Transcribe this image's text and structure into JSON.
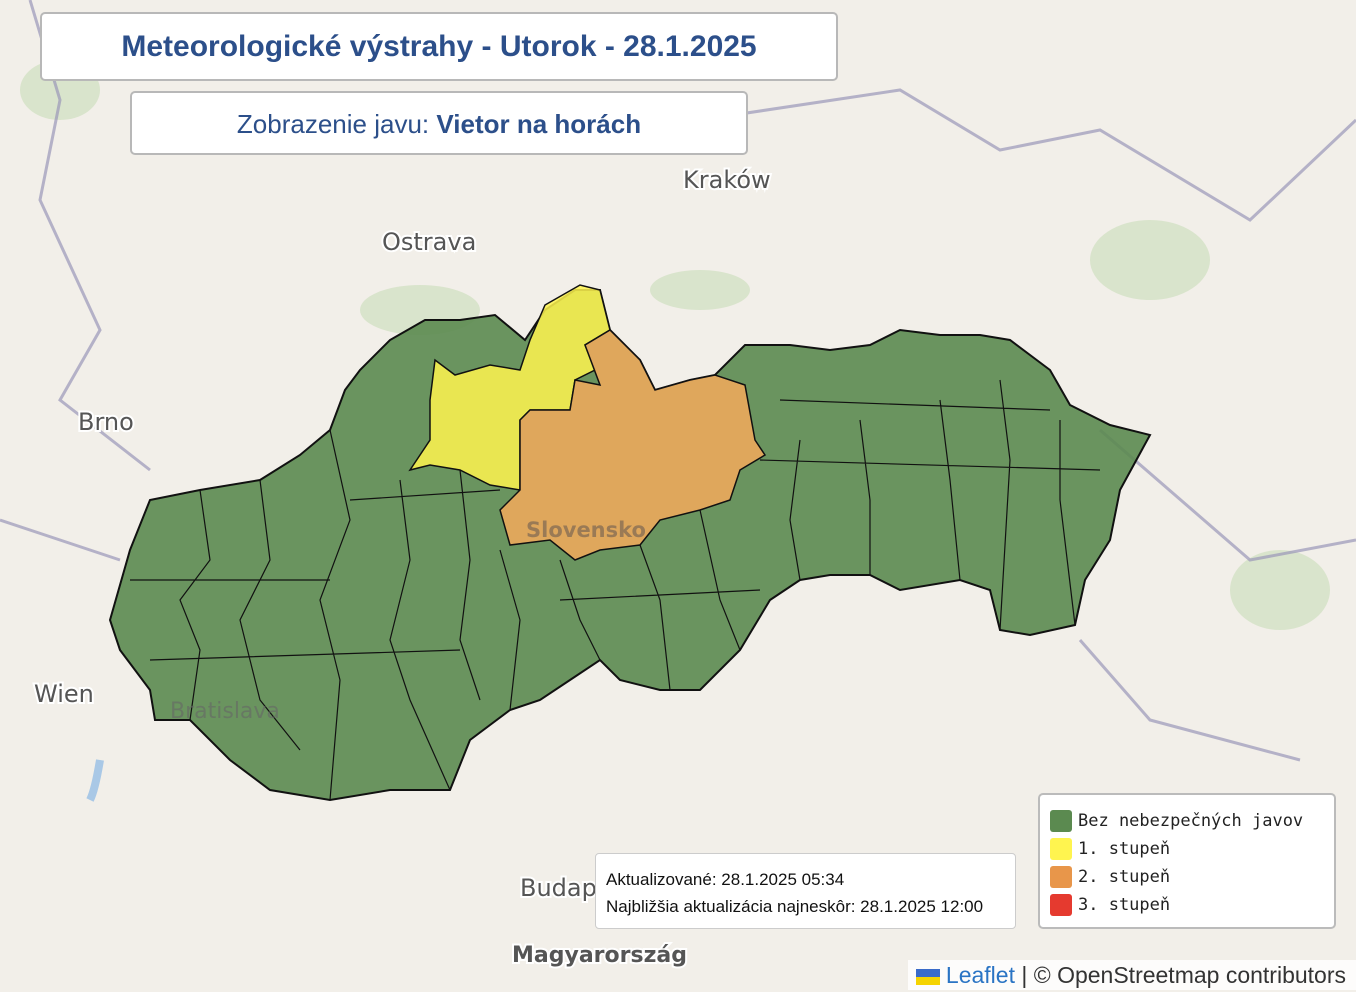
{
  "header": {
    "title": "Meteorologické výstrahy - Utorok - 28.1.2025",
    "subtitle_prefix": "Zobrazenie javu:",
    "subtitle_value": "Vietor na horách"
  },
  "map_labels": {
    "krakow": "Kraków",
    "ostrava": "Ostrava",
    "brno": "Brno",
    "wien": "Wien",
    "bratislava": "Bratislava",
    "slovensko": "Slovensko",
    "budapest": "Budap",
    "magyarorszag": "Magyarország"
  },
  "info": {
    "updated": "Aktualizované: 28.1.2025 05:34",
    "next": "Najbližšia aktualizácia najneskôr: 28.1.2025 12:00"
  },
  "legend": {
    "items": [
      {
        "label": "Bez nebezpečných javov",
        "color": "#5b8a50"
      },
      {
        "label": "1. stupeň",
        "color": "#fff44f"
      },
      {
        "label": "2. stupeň",
        "color": "#e8964a"
      },
      {
        "label": "3. stupeň",
        "color": "#e53a2f"
      }
    ]
  },
  "attribution": {
    "leaflet": "Leaflet",
    "separator": "|",
    "osm": "© OpenStreetmap contributors"
  }
}
